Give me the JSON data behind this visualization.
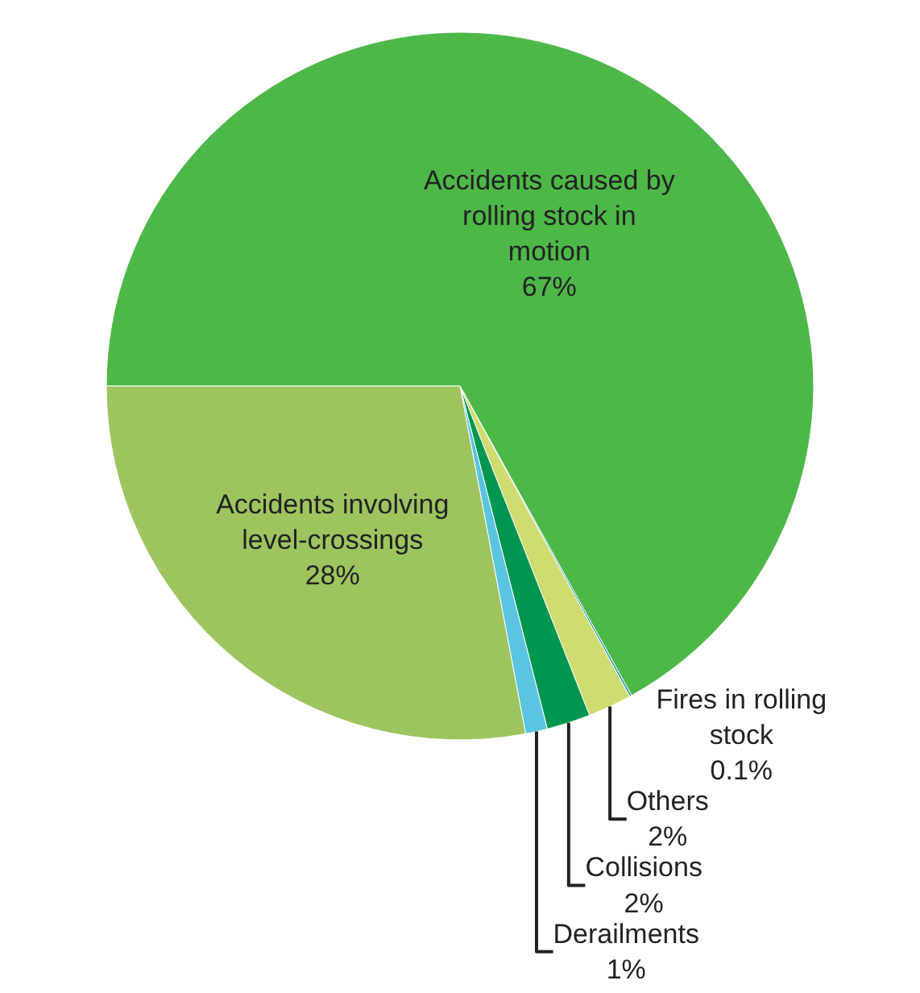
{
  "chart_data": {
    "type": "pie",
    "categories": [
      "Accidents caused by rolling stock in motion",
      "Fires in rolling stock",
      "Others",
      "Collisions",
      "Derailments",
      "Accidents involving level-crossings"
    ],
    "values": [
      67,
      0.1,
      2,
      2,
      1,
      28
    ],
    "colors": [
      "#4db848",
      "#1b9aaa",
      "#cfdc72",
      "#009650",
      "#5bc4e0",
      "#9dc45f"
    ],
    "value_labels": [
      "67%",
      "0.1%",
      "2%",
      "2%",
      "1%",
      "28%"
    ],
    "legend": false
  }
}
